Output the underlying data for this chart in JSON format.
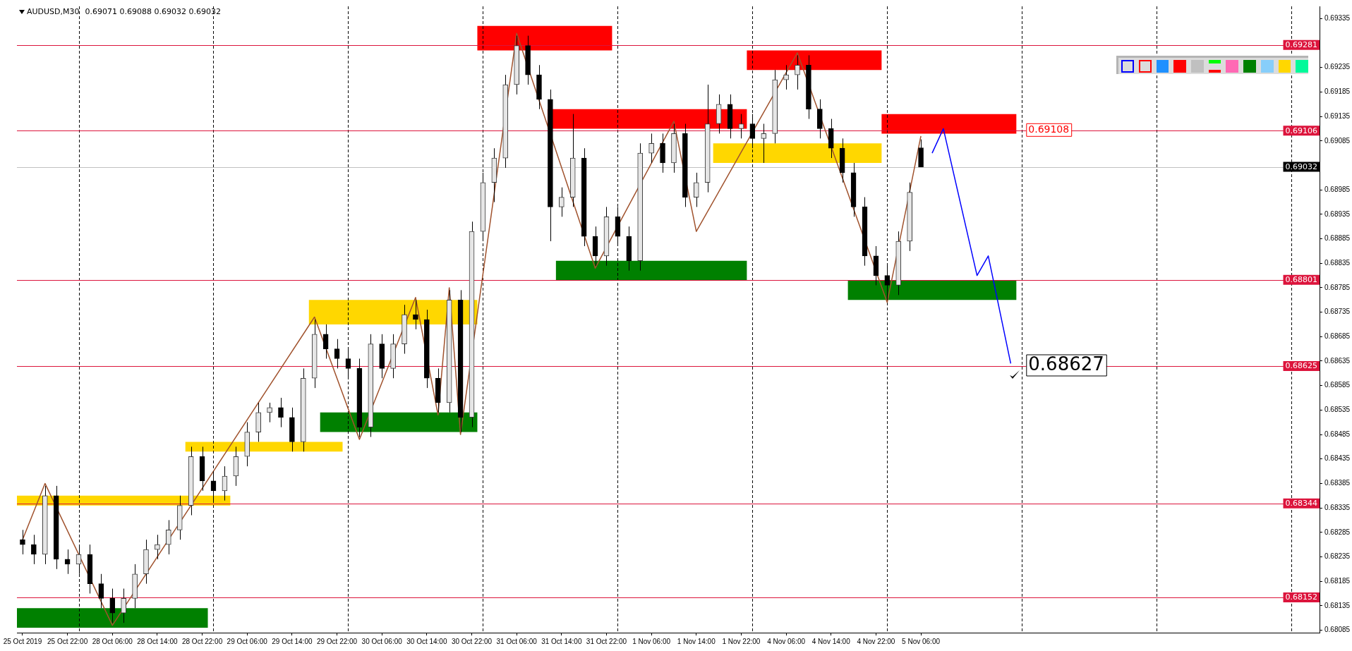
{
  "chart_data": {
    "type": "candlestick",
    "title": "AUDUSD,M30",
    "subtitle": "0.69071 0.69088 0.69032 0.69032",
    "grid": "x",
    "categories": [
      "25 Oct 2019",
      null,
      null,
      null,
      "25 Oct 22:00",
      null,
      null,
      null,
      "28 Oct 06:00",
      null,
      null,
      null,
      "28 Oct 14:00",
      null,
      null,
      null,
      "28 Oct 22:00",
      null,
      null,
      null,
      "29 Oct 06:00",
      null,
      null,
      null,
      "29 Oct 14:00",
      null,
      null,
      null,
      "29 Oct 22:00",
      null,
      null,
      null,
      "30 Oct 06:00",
      null,
      null,
      null,
      "30 Oct 14:00",
      null,
      null,
      null,
      "30 Oct 22:00",
      null,
      null,
      null,
      "31 Oct 06:00",
      null,
      null,
      null,
      "31 Oct 14:00",
      null,
      null,
      null,
      "31 Oct 22:00",
      null,
      null,
      null,
      "1 Nov 06:00",
      null,
      null,
      null,
      "1 Nov 14:00",
      null,
      null,
      null,
      "1 Nov 22:00",
      null,
      null,
      null,
      "4 Nov 06:00",
      null,
      null,
      null,
      "4 Nov 14:00",
      null,
      null,
      null,
      "4 Nov 22:00",
      null,
      null,
      null,
      "5 Nov 06:00",
      null,
      null,
      null,
      null,
      null,
      null,
      null,
      null,
      null,
      null,
      null,
      null,
      null,
      null,
      null,
      null,
      null,
      null,
      null,
      null,
      null,
      null,
      null,
      null,
      null,
      null,
      null,
      null,
      null,
      null,
      null,
      null,
      null,
      null,
      null
    ],
    "ohlc": [
      [
        0.6827,
        0.6829,
        0.6824,
        0.6826
      ],
      [
        0.6826,
        0.6828,
        0.6822,
        0.6824
      ],
      [
        0.6824,
        0.6838,
        0.6822,
        0.6836
      ],
      [
        0.6836,
        0.6838,
        0.6821,
        0.6823
      ],
      [
        0.6823,
        0.6825,
        0.682,
        0.6822
      ],
      [
        0.6822,
        0.6826,
        0.682,
        0.6824
      ],
      [
        0.6824,
        0.6826,
        0.6816,
        0.6818
      ],
      [
        0.6818,
        0.682,
        0.6813,
        0.6815
      ],
      [
        0.6815,
        0.6817,
        0.681,
        0.6812
      ],
      [
        0.6812,
        0.6817,
        0.681,
        0.6815
      ],
      [
        0.6815,
        0.6822,
        0.6813,
        0.682
      ],
      [
        0.682,
        0.6827,
        0.6818,
        0.6825
      ],
      [
        0.6825,
        0.6828,
        0.6823,
        0.6826
      ],
      [
        0.6826,
        0.6831,
        0.6824,
        0.6829
      ],
      [
        0.6829,
        0.6836,
        0.6827,
        0.6834
      ],
      [
        0.6834,
        0.6846,
        0.6832,
        0.6844
      ],
      [
        0.6844,
        0.6846,
        0.6837,
        0.6839
      ],
      [
        0.6839,
        0.6841,
        0.6835,
        0.6837
      ],
      [
        0.6837,
        0.6842,
        0.6835,
        0.684
      ],
      [
        0.684,
        0.6846,
        0.6838,
        0.6844
      ],
      [
        0.6844,
        0.6851,
        0.6842,
        0.6849
      ],
      [
        0.6849,
        0.6855,
        0.6847,
        0.6853
      ],
      [
        0.6853,
        0.6855,
        0.6851,
        0.6854
      ],
      [
        0.6854,
        0.6856,
        0.685,
        0.6852
      ],
      [
        0.6852,
        0.6854,
        0.6845,
        0.6847
      ],
      [
        0.6847,
        0.6862,
        0.6845,
        0.686
      ],
      [
        0.686,
        0.6872,
        0.6858,
        0.6869
      ],
      [
        0.6869,
        0.6871,
        0.6864,
        0.6866
      ],
      [
        0.6866,
        0.6868,
        0.6862,
        0.6864
      ],
      [
        0.6864,
        0.6866,
        0.686,
        0.6862
      ],
      [
        0.6862,
        0.6864,
        0.6848,
        0.685
      ],
      [
        0.685,
        0.6869,
        0.6848,
        0.6867
      ],
      [
        0.6867,
        0.6869,
        0.686,
        0.6862
      ],
      [
        0.6862,
        0.6869,
        0.686,
        0.6867
      ],
      [
        0.6867,
        0.6875,
        0.6865,
        0.6873
      ],
      [
        0.6873,
        0.6876,
        0.687,
        0.6872
      ],
      [
        0.6872,
        0.6874,
        0.6858,
        0.686
      ],
      [
        0.686,
        0.6862,
        0.6853,
        0.6855
      ],
      [
        0.6855,
        0.6878,
        0.6853,
        0.6876
      ],
      [
        0.6876,
        0.6878,
        0.6849,
        0.6852
      ],
      [
        0.6852,
        0.6892,
        0.685,
        0.689
      ],
      [
        0.689,
        0.6902,
        0.6888,
        0.69
      ],
      [
        0.69,
        0.6907,
        0.6896,
        0.6905
      ],
      [
        0.6905,
        0.6922,
        0.6903,
        0.692
      ],
      [
        0.692,
        0.693,
        0.6918,
        0.6928
      ],
      [
        0.6928,
        0.693,
        0.692,
        0.6922
      ],
      [
        0.6922,
        0.6924,
        0.6915,
        0.6917
      ],
      [
        0.6917,
        0.6919,
        0.6888,
        0.6895
      ],
      [
        0.6895,
        0.6899,
        0.6893,
        0.6897
      ],
      [
        0.6897,
        0.6914,
        0.6895,
        0.6905
      ],
      [
        0.6905,
        0.6907,
        0.6887,
        0.6889
      ],
      [
        0.6889,
        0.6891,
        0.6883,
        0.6885
      ],
      [
        0.6885,
        0.6895,
        0.6883,
        0.6893
      ],
      [
        0.6893,
        0.6895,
        0.6887,
        0.6889
      ],
      [
        0.6889,
        0.6891,
        0.6882,
        0.6884
      ],
      [
        0.6884,
        0.6908,
        0.6882,
        0.6906
      ],
      [
        0.6906,
        0.691,
        0.6904,
        0.6908
      ],
      [
        0.6908,
        0.691,
        0.6902,
        0.6904
      ],
      [
        0.6904,
        0.6912,
        0.6902,
        0.691
      ],
      [
        0.691,
        0.6912,
        0.6895,
        0.6897
      ],
      [
        0.6897,
        0.6902,
        0.6895,
        0.69
      ],
      [
        0.69,
        0.692,
        0.6898,
        0.6912
      ],
      [
        0.6912,
        0.6918,
        0.691,
        0.6916
      ],
      [
        0.6916,
        0.6918,
        0.6909,
        0.6911
      ],
      [
        0.6911,
        0.6914,
        0.6909,
        0.6912
      ],
      [
        0.6912,
        0.6914,
        0.6907,
        0.6909
      ],
      [
        0.6909,
        0.6912,
        0.6904,
        0.691
      ],
      [
        0.691,
        0.6923,
        0.6908,
        0.6921
      ],
      [
        0.6921,
        0.6924,
        0.6919,
        0.6922
      ],
      [
        0.6922,
        0.6926,
        0.6919,
        0.6924
      ],
      [
        0.6924,
        0.6926,
        0.6913,
        0.6915
      ],
      [
        0.6915,
        0.6917,
        0.6909,
        0.6911
      ],
      [
        0.6911,
        0.6913,
        0.6905,
        0.6907
      ],
      [
        0.6907,
        0.6909,
        0.69,
        0.6902
      ],
      [
        0.6902,
        0.6904,
        0.6893,
        0.6895
      ],
      [
        0.6895,
        0.6897,
        0.6883,
        0.6885
      ],
      [
        0.6885,
        0.6887,
        0.6879,
        0.6881
      ],
      [
        0.6881,
        0.6883,
        0.6876,
        0.6879
      ],
      [
        0.6879,
        0.689,
        0.6877,
        0.6888
      ],
      [
        0.6888,
        0.69,
        0.6886,
        0.6898
      ],
      [
        0.69071,
        0.69088,
        0.69032,
        0.69032
      ],
      null,
      null,
      null,
      null,
      null,
      null,
      null,
      null,
      null,
      null,
      null,
      null,
      null,
      null,
      null,
      null,
      null,
      null,
      null,
      null,
      null,
      null,
      null,
      null,
      null,
      null,
      null,
      null,
      null,
      null,
      null,
      null,
      null,
      null,
      null
    ],
    "series": [
      {
        "type": "line",
        "color": "#a0522d",
        "values": [
          0.6827,
          null,
          0.68385,
          null,
          null,
          null,
          null,
          null,
          0.68095,
          null,
          null,
          null,
          null,
          null,
          null,
          null,
          null,
          null,
          null,
          null,
          null,
          null,
          null,
          null,
          null,
          null,
          0.68725,
          null,
          null,
          null,
          0.68475,
          null,
          null,
          null,
          null,
          0.68765,
          null,
          0.68525,
          0.68785,
          0.68485,
          null,
          null,
          null,
          null,
          0.69305,
          null,
          null,
          null,
          null,
          null,
          null,
          0.68825,
          null,
          null,
          null,
          null,
          null,
          null,
          0.69125,
          null,
          0.689,
          null,
          null,
          null,
          null,
          null,
          null,
          null,
          null,
          0.69265,
          null,
          null,
          null,
          null,
          null,
          null,
          null,
          0.68755,
          null,
          null,
          0.69095,
          null,
          null,
          null,
          null,
          null,
          null,
          null,
          null,
          null,
          null,
          null,
          null,
          null,
          null,
          null,
          null,
          null,
          null,
          null,
          null,
          null,
          null,
          null,
          null,
          null,
          null,
          null,
          null,
          null,
          null,
          null,
          null,
          null,
          null,
          null
        ]
      },
      {
        "type": "line",
        "color": "#0000ff",
        "values": [
          null,
          null,
          null,
          null,
          null,
          null,
          null,
          null,
          null,
          null,
          null,
          null,
          null,
          null,
          null,
          null,
          null,
          null,
          null,
          null,
          null,
          null,
          null,
          null,
          null,
          null,
          null,
          null,
          null,
          null,
          null,
          null,
          null,
          null,
          null,
          null,
          null,
          null,
          null,
          null,
          null,
          null,
          null,
          null,
          null,
          null,
          null,
          null,
          null,
          null,
          null,
          null,
          null,
          null,
          null,
          null,
          null,
          null,
          null,
          null,
          null,
          null,
          null,
          null,
          null,
          null,
          null,
          null,
          null,
          null,
          null,
          null,
          null,
          null,
          null,
          null,
          null,
          null,
          null,
          null,
          null,
          0.6906,
          0.6911,
          null,
          null,
          0.6881,
          0.6885,
          null,
          0.6863,
          null,
          null,
          null,
          null,
          null,
          null,
          null,
          null,
          null,
          null,
          null,
          null,
          null,
          null,
          null,
          null,
          null,
          null,
          null,
          null,
          null,
          null,
          null,
          null,
          null,
          null,
          null
        ]
      }
    ],
    "ylim": [
      0.6808,
      0.6936
    ],
    "yticks": [
      0.68085,
      0.68135,
      0.68185,
      0.68235,
      0.68285,
      0.68335,
      0.68385,
      0.68435,
      0.68485,
      0.68535,
      0.68585,
      0.68635,
      0.68685,
      0.68735,
      0.68785,
      0.68835,
      0.68885,
      0.68935,
      0.68985,
      0.69085,
      0.69135,
      0.69185,
      0.69235,
      0.69335
    ],
    "bands": [
      {
        "axis": "y",
        "from": 0.6927,
        "to": 0.6932,
        "color": "#ff0000"
      },
      {
        "axis": "y",
        "from": 0.6911,
        "to": 0.6915,
        "color": "#ff0000"
      },
      {
        "axis": "y",
        "from": 0.6923,
        "to": 0.6927,
        "color": "#ff0000"
      },
      {
        "axis": "y",
        "from": 0.691,
        "to": 0.6914,
        "color": "#ff0000"
      },
      {
        "axis": "y",
        "from": 0.6904,
        "to": 0.6908,
        "color": "#ffd700"
      },
      {
        "axis": "y",
        "from": 0.688,
        "to": 0.6884,
        "color": "#008000"
      },
      {
        "axis": "y",
        "from": 0.6876,
        "to": 0.688,
        "color": "#008000"
      },
      {
        "axis": "y",
        "from": 0.6871,
        "to": 0.6876,
        "color": "#ffd700"
      },
      {
        "axis": "y",
        "from": 0.6849,
        "to": 0.6853,
        "color": "#008000"
      },
      {
        "axis": "y",
        "from": 0.6845,
        "to": 0.6847,
        "color": "#ffd700"
      },
      {
        "axis": "y",
        "from": 0.6834,
        "to": 0.6836,
        "color": "#ffd700"
      },
      {
        "axis": "y",
        "from": 0.6809,
        "to": 0.6813,
        "color": "#008000"
      }
    ],
    "ref_lines": [
      {
        "axis": "y",
        "value": 0.69281,
        "label": "0.69281",
        "color": "#dc143c"
      },
      {
        "axis": "y",
        "value": 0.69106,
        "label": "0.69106",
        "color": "#dc143c"
      },
      {
        "axis": "y",
        "value": 0.69032,
        "label": "0.69032",
        "color": "#c0c0c0"
      },
      {
        "axis": "y",
        "value": 0.68801,
        "label": "0.68801",
        "color": "#dc143c"
      },
      {
        "axis": "y",
        "value": 0.68625,
        "label": "0.68625",
        "color": "#dc143c"
      },
      {
        "axis": "y",
        "value": 0.68344,
        "label": "0.68344",
        "color": "#dc143c"
      },
      {
        "axis": "y",
        "value": 0.68152,
        "label": "0.68152",
        "color": "#dc143c"
      }
    ],
    "annotations": [
      {
        "text": "0.69108",
        "y": 0.69108
      },
      {
        "text": "0.68627",
        "y": 0.68627
      }
    ]
  }
}
